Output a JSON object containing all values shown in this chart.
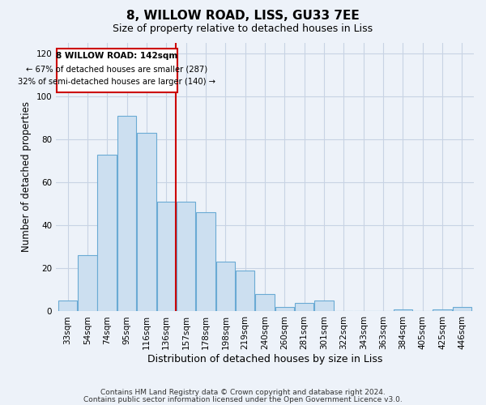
{
  "title": "8, WILLOW ROAD, LISS, GU33 7EE",
  "subtitle": "Size of property relative to detached houses in Liss",
  "xlabel": "Distribution of detached houses by size in Liss",
  "ylabel": "Number of detached properties",
  "bar_labels": [
    "33sqm",
    "54sqm",
    "74sqm",
    "95sqm",
    "116sqm",
    "136sqm",
    "157sqm",
    "178sqm",
    "198sqm",
    "219sqm",
    "240sqm",
    "260sqm",
    "281sqm",
    "301sqm",
    "322sqm",
    "343sqm",
    "363sqm",
    "384sqm",
    "405sqm",
    "425sqm",
    "446sqm"
  ],
  "bar_values": [
    5,
    26,
    73,
    91,
    83,
    51,
    51,
    46,
    23,
    19,
    8,
    2,
    4,
    5,
    0,
    0,
    0,
    1,
    0,
    1,
    2
  ],
  "bar_color": "#ccdff0",
  "bar_edge_color": "#6aaad4",
  "ylim": [
    0,
    125
  ],
  "yticks": [
    0,
    20,
    40,
    60,
    80,
    100,
    120
  ],
  "property_line_color": "#cc0000",
  "annotation_title": "8 WILLOW ROAD: 142sqm",
  "annotation_line1": "← 67% of detached houses are smaller (287)",
  "annotation_line2": "32% of semi-detached houses are larger (140) →",
  "annotation_box_color": "#cc0000",
  "bg_color": "#edf2f9",
  "grid_color": "#c8d3e4",
  "footer1": "Contains HM Land Registry data © Crown copyright and database right 2024.",
  "footer2": "Contains public sector information licensed under the Open Government Licence v3.0."
}
